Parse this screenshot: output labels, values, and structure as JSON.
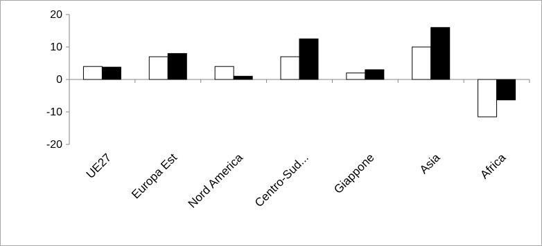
{
  "chart_data": {
    "type": "bar",
    "title": "",
    "xlabel": "",
    "ylabel": "",
    "categories": [
      "UE27",
      "Europa Est",
      "Nord America",
      "Centro-Sud...",
      "Giappone",
      "Asia",
      "Africa"
    ],
    "series": [
      {
        "values": [
          4,
          7,
          4,
          7,
          2,
          10,
          -11.5
        ],
        "color": "#ffffff"
      },
      {
        "values": [
          3.8,
          8,
          1,
          12.5,
          3,
          16,
          -6.3
        ],
        "color": "#000000"
      }
    ],
    "ylim": [
      -20,
      20
    ],
    "yticks": [
      -20,
      -10,
      0,
      10,
      20
    ],
    "grid": false,
    "legend": "none"
  }
}
